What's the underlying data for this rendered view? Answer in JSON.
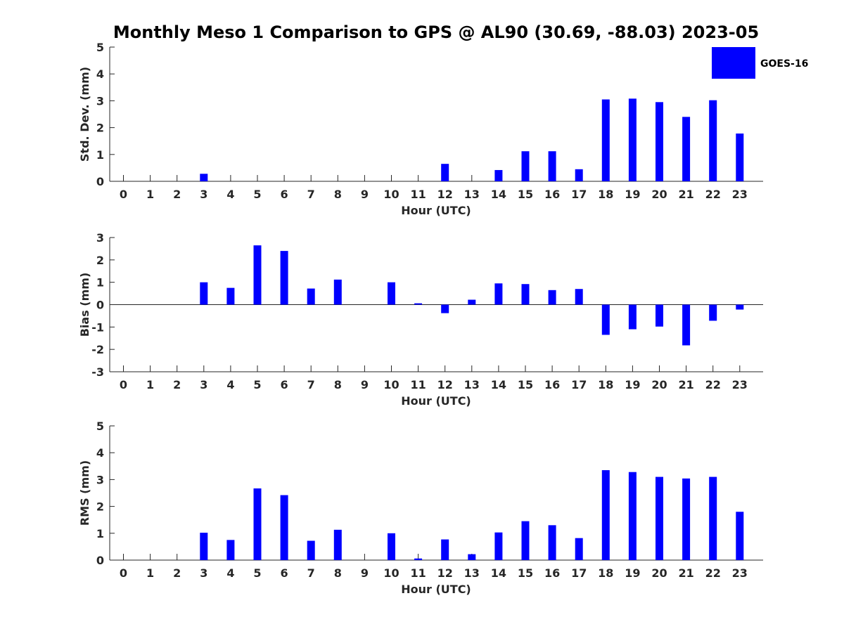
{
  "figure": {
    "title": "Monthly Meso 1 Comparison to GPS @ AL90 (30.69, -88.03) 2023-05",
    "legend": {
      "label": "GOES-16",
      "color": "#0000ff",
      "placement": "top-right"
    }
  },
  "chart_data": [
    {
      "type": "bar",
      "name": "std",
      "ylabel": "Std. Dev. (mm)",
      "xlabel": "Hour (UTC)",
      "categories": [
        "0",
        "1",
        "2",
        "3",
        "4",
        "5",
        "6",
        "7",
        "8",
        "9",
        "10",
        "11",
        "12",
        "13",
        "14",
        "15",
        "16",
        "17",
        "18",
        "19",
        "20",
        "21",
        "22",
        "23"
      ],
      "series": [
        {
          "name": "GOES-16",
          "values": [
            0,
            0,
            0,
            0.28,
            0,
            0,
            0,
            0,
            0,
            0,
            0,
            0,
            0.65,
            0,
            0.42,
            1.12,
            1.12,
            0.45,
            3.05,
            3.08,
            2.95,
            2.4,
            3.02,
            1.78
          ]
        }
      ],
      "ylim": [
        0,
        5
      ],
      "yticks": [
        0,
        1,
        2,
        3,
        4,
        5
      ],
      "grid": false,
      "legend": "top-right"
    },
    {
      "type": "bar",
      "name": "bias",
      "ylabel": "Bias (mm)",
      "xlabel": "Hour (UTC)",
      "categories": [
        "0",
        "1",
        "2",
        "3",
        "4",
        "5",
        "6",
        "7",
        "8",
        "9",
        "10",
        "11",
        "12",
        "13",
        "14",
        "15",
        "16",
        "17",
        "18",
        "19",
        "20",
        "21",
        "22",
        "23"
      ],
      "series": [
        {
          "name": "GOES-16",
          "values": [
            0,
            0,
            0,
            1.0,
            0.75,
            2.65,
            2.4,
            0.72,
            1.12,
            0,
            1.0,
            0.06,
            -0.38,
            0.22,
            0.95,
            0.92,
            0.65,
            0.7,
            -1.35,
            -1.1,
            -0.98,
            -1.82,
            -0.72,
            -0.22
          ]
        }
      ],
      "ylim": [
        -3,
        3
      ],
      "yticks": [
        -3,
        -2,
        -1,
        0,
        1,
        2,
        3
      ],
      "grid": false,
      "zero_line": true
    },
    {
      "type": "bar",
      "name": "rms",
      "ylabel": "RMS (mm)",
      "xlabel": "Hour (UTC)",
      "categories": [
        "0",
        "1",
        "2",
        "3",
        "4",
        "5",
        "6",
        "7",
        "8",
        "9",
        "10",
        "11",
        "12",
        "13",
        "14",
        "15",
        "16",
        "17",
        "18",
        "19",
        "20",
        "21",
        "22",
        "23"
      ],
      "series": [
        {
          "name": "GOES-16",
          "values": [
            0,
            0,
            0,
            1.02,
            0.75,
            2.67,
            2.42,
            0.72,
            1.13,
            0,
            1.0,
            0.06,
            0.77,
            0.22,
            1.03,
            1.45,
            1.3,
            0.82,
            3.35,
            3.28,
            3.1,
            3.04,
            3.1,
            1.8
          ]
        }
      ],
      "ylim": [
        0,
        5
      ],
      "yticks": [
        0,
        1,
        2,
        3,
        4,
        5
      ],
      "grid": false
    }
  ]
}
